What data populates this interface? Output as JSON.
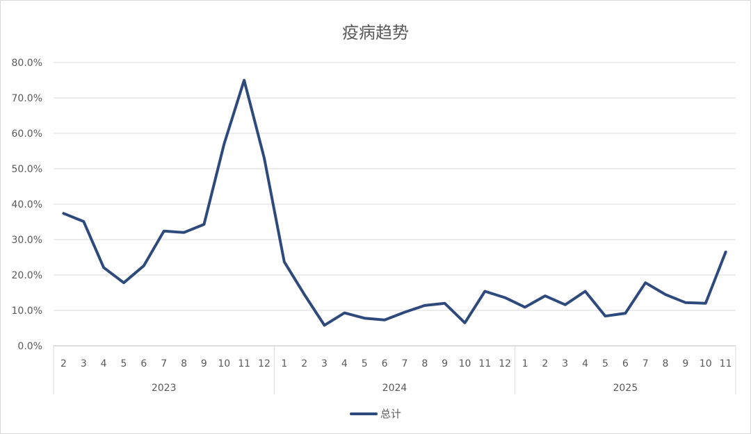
{
  "chart_data": {
    "type": "line",
    "title": "疫病趋势",
    "xlabel": "",
    "ylabel": "",
    "ylim": [
      0,
      0.8
    ],
    "y_ticks": [
      "0.0%",
      "10.0%",
      "20.0%",
      "30.0%",
      "40.0%",
      "50.0%",
      "60.0%",
      "70.0%",
      "80.0%"
    ],
    "grid": true,
    "legend_position": "bottom",
    "line_color": "#2e4a7d",
    "groups": [
      {
        "label": "2023",
        "months": [
          "2",
          "3",
          "4",
          "5",
          "6",
          "7",
          "8",
          "9",
          "10",
          "11",
          "12"
        ]
      },
      {
        "label": "2024",
        "months": [
          "1",
          "2",
          "3",
          "4",
          "5",
          "6",
          "7",
          "8",
          "9",
          "10",
          "11",
          "12"
        ]
      },
      {
        "label": "2025",
        "months": [
          "1",
          "2",
          "3",
          "4",
          "5",
          "6",
          "7",
          "8",
          "9",
          "10",
          "11"
        ]
      }
    ],
    "series": [
      {
        "name": "总计",
        "values": [
          0.374,
          0.351,
          0.221,
          0.178,
          0.226,
          0.324,
          0.32,
          0.343,
          0.57,
          0.75,
          0.53,
          0.237,
          0.145,
          0.058,
          0.093,
          0.078,
          0.073,
          0.095,
          0.114,
          0.12,
          0.065,
          0.154,
          0.136,
          0.109,
          0.141,
          0.116,
          0.154,
          0.084,
          0.092,
          0.178,
          0.145,
          0.122,
          0.12,
          0.265
        ]
      }
    ]
  }
}
